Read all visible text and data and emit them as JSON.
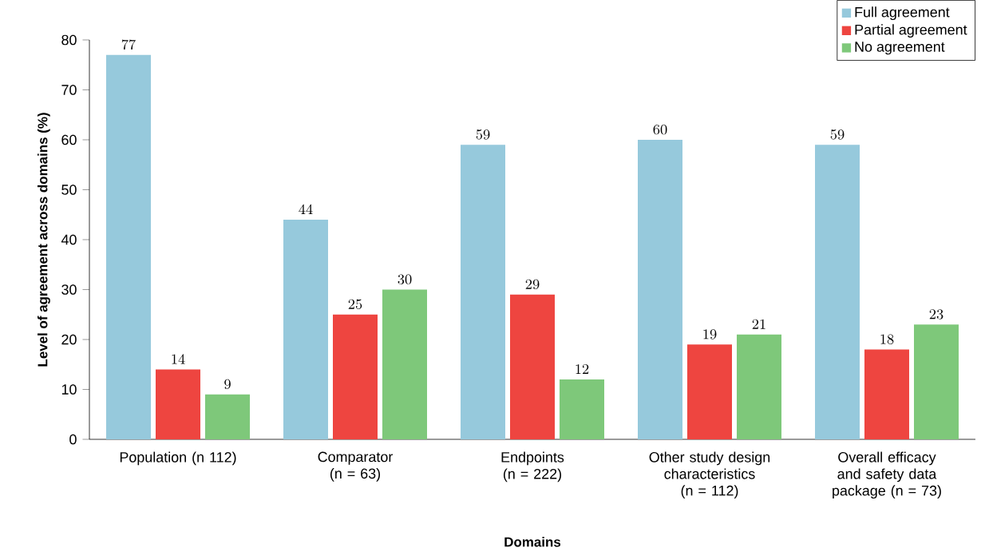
{
  "chart_data": {
    "type": "bar",
    "xlabel": "Domains",
    "ylabel": "Level of agreement across domains (%)",
    "categories": [
      "Population (n 112)",
      "Comparator (n = 63)",
      "Endpoints (n = 222)",
      "Other study design characteristics (n = 112)",
      "Overall efficacy and safety data package (n = 73)"
    ],
    "series": [
      {
        "name": "Full agreement",
        "color": "#96c9dc",
        "values": [
          77,
          44,
          59,
          60,
          59
        ]
      },
      {
        "name": "Partial agreement",
        "color": "#ee4540",
        "values": [
          14,
          25,
          29,
          19,
          18
        ]
      },
      {
        "name": "No agreement",
        "color": "#7ec87a",
        "values": [
          9,
          30,
          12,
          21,
          23
        ]
      }
    ],
    "ylim": [
      0,
      80
    ],
    "yticks": [
      0,
      10,
      20,
      30,
      40,
      50,
      60,
      70,
      80
    ],
    "grid": false,
    "legend": "top right",
    "data_labels": true
  }
}
